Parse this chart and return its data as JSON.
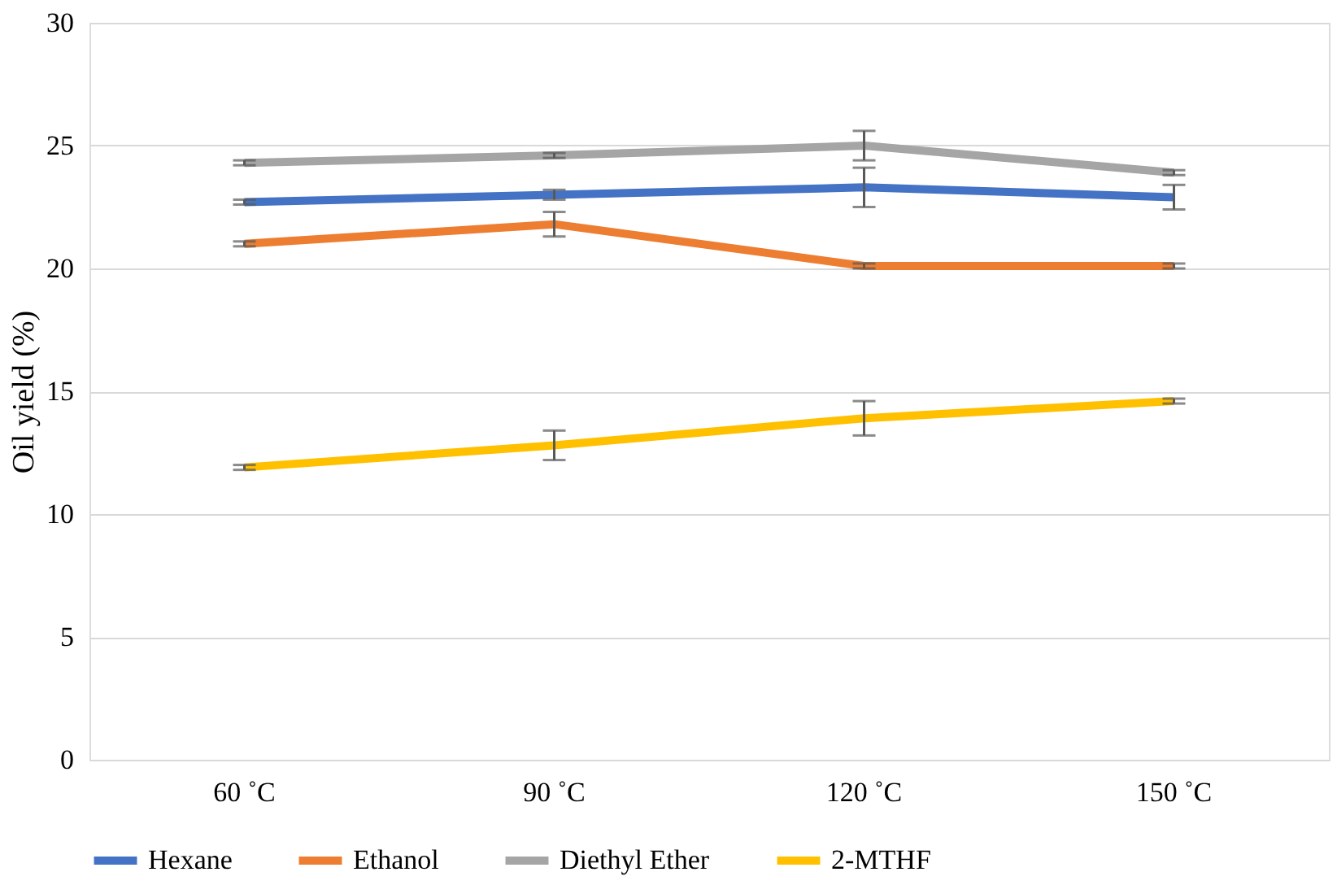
{
  "chart_data": {
    "type": "line",
    "ylabel": "Oil yield (%)",
    "categories": [
      "60 ˚C",
      "90 ˚C",
      "120 ˚C",
      "150 ˚C"
    ],
    "series": [
      {
        "name": "Hexane",
        "color": "#4472c4",
        "values": [
          22.7,
          23.0,
          23.3,
          22.9
        ],
        "errors": [
          0.1,
          0.2,
          0.8,
          0.5
        ]
      },
      {
        "name": "Ethanol",
        "color": "#ed7d31",
        "values": [
          21.0,
          21.8,
          20.1,
          20.1
        ],
        "errors": [
          0.1,
          0.5,
          0.1,
          0.1
        ]
      },
      {
        "name": "Diethyl Ether",
        "color": "#a5a5a5",
        "values": [
          24.3,
          24.6,
          25.0,
          23.9
        ],
        "errors": [
          0.1,
          0.1,
          0.6,
          0.1
        ]
      },
      {
        "name": "2-MTHF",
        "color": "#ffc000",
        "values": [
          11.9,
          12.8,
          13.9,
          14.6
        ],
        "errors": [
          0.1,
          0.6,
          0.7,
          0.1
        ]
      }
    ],
    "ylim": [
      0,
      30
    ],
    "yticks": [
      0,
      5,
      10,
      15,
      20,
      25,
      30
    ],
    "grid": "y",
    "legend": "bottom",
    "marker": "none",
    "line_style": "solid"
  }
}
